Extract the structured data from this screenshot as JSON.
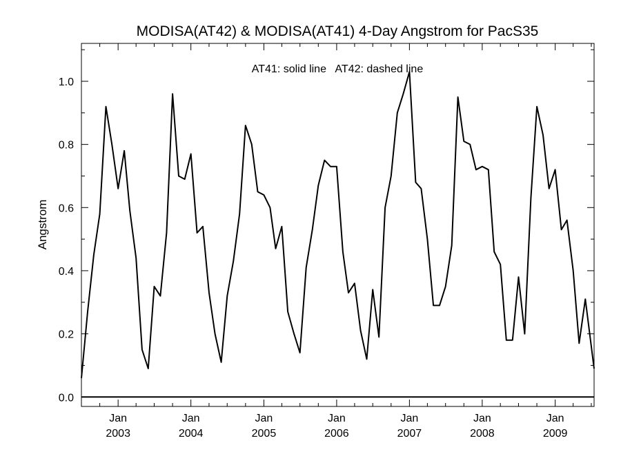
{
  "chart_data": {
    "type": "line",
    "title": "MODISA(AT42) & MODISA(AT41) 4-Day Angstrom for PacS35",
    "annotation": "AT41: solid line   AT42: dashed line",
    "ylabel": "Angstrom",
    "xlabel": "",
    "xlim": [
      "2002-07-01",
      "2009-07-15"
    ],
    "ylim": [
      -0.03,
      1.12
    ],
    "yticks": [
      0.0,
      0.2,
      0.4,
      0.6,
      0.8,
      1.0
    ],
    "ytick_labels": [
      "0.0",
      "0.2",
      "0.4",
      "0.6",
      "0.8",
      "1.0"
    ],
    "xticks": [
      {
        "date": "2003-01-01",
        "month": "Jan",
        "year": "2003"
      },
      {
        "date": "2004-01-01",
        "month": "Jan",
        "year": "2004"
      },
      {
        "date": "2005-01-01",
        "month": "Jan",
        "year": "2005"
      },
      {
        "date": "2006-01-01",
        "month": "Jan",
        "year": "2006"
      },
      {
        "date": "2007-01-01",
        "month": "Jan",
        "year": "2007"
      },
      {
        "date": "2008-01-01",
        "month": "Jan",
        "year": "2008"
      },
      {
        "date": "2009-01-01",
        "month": "Jan",
        "year": "2009"
      }
    ],
    "grid": false,
    "series": [
      {
        "style": "solid",
        "color": "#000000",
        "points": [
          [
            "2002-07-01",
            0.06
          ],
          [
            "2002-08-01",
            0.27
          ],
          [
            "2002-09-01",
            0.45
          ],
          [
            "2002-10-01",
            0.58
          ],
          [
            "2002-11-01",
            0.92
          ],
          [
            "2002-12-01",
            0.8
          ],
          [
            "2003-01-01",
            0.66
          ],
          [
            "2003-02-01",
            0.78
          ],
          [
            "2003-03-01",
            0.59
          ],
          [
            "2003-04-01",
            0.44
          ],
          [
            "2003-05-01",
            0.15
          ],
          [
            "2003-06-01",
            0.09
          ],
          [
            "2003-07-01",
            0.35
          ],
          [
            "2003-08-01",
            0.32
          ],
          [
            "2003-09-01",
            0.52
          ],
          [
            "2003-10-01",
            0.96
          ],
          [
            "2003-11-01",
            0.7
          ],
          [
            "2003-12-01",
            0.69
          ],
          [
            "2004-01-01",
            0.77
          ],
          [
            "2004-02-01",
            0.52
          ],
          [
            "2004-03-01",
            0.54
          ],
          [
            "2004-04-01",
            0.33
          ],
          [
            "2004-05-01",
            0.2
          ],
          [
            "2004-06-01",
            0.11
          ],
          [
            "2004-07-01",
            0.32
          ],
          [
            "2004-08-01",
            0.43
          ],
          [
            "2004-09-01",
            0.58
          ],
          [
            "2004-10-01",
            0.86
          ],
          [
            "2004-11-01",
            0.8
          ],
          [
            "2004-12-01",
            0.65
          ],
          [
            "2005-01-01",
            0.64
          ],
          [
            "2005-02-01",
            0.6
          ],
          [
            "2005-03-01",
            0.47
          ],
          [
            "2005-04-01",
            0.54
          ],
          [
            "2005-05-01",
            0.27
          ],
          [
            "2005-06-01",
            0.2
          ],
          [
            "2005-07-01",
            0.14
          ],
          [
            "2005-08-01",
            0.41
          ],
          [
            "2005-09-01",
            0.53
          ],
          [
            "2005-10-01",
            0.67
          ],
          [
            "2005-11-01",
            0.75
          ],
          [
            "2005-12-01",
            0.73
          ],
          [
            "2006-01-01",
            0.73
          ],
          [
            "2006-02-01",
            0.46
          ],
          [
            "2006-03-01",
            0.33
          ],
          [
            "2006-04-01",
            0.36
          ],
          [
            "2006-05-01",
            0.21
          ],
          [
            "2006-06-01",
            0.12
          ],
          [
            "2006-07-01",
            0.34
          ],
          [
            "2006-08-01",
            0.19
          ],
          [
            "2006-09-01",
            0.6
          ],
          [
            "2006-10-01",
            0.7
          ],
          [
            "2006-11-01",
            0.9
          ],
          [
            "2006-12-01",
            0.96
          ],
          [
            "2007-01-01",
            1.03
          ],
          [
            "2007-02-01",
            0.68
          ],
          [
            "2007-03-01",
            0.66
          ],
          [
            "2007-04-01",
            0.5
          ],
          [
            "2007-05-01",
            0.29
          ],
          [
            "2007-06-01",
            0.29
          ],
          [
            "2007-07-01",
            0.35
          ],
          [
            "2007-08-01",
            0.48
          ],
          [
            "2007-09-01",
            0.95
          ],
          [
            "2007-10-01",
            0.81
          ],
          [
            "2007-11-01",
            0.8
          ],
          [
            "2007-12-01",
            0.72
          ],
          [
            "2008-01-01",
            0.73
          ],
          [
            "2008-02-01",
            0.72
          ],
          [
            "2008-03-01",
            0.46
          ],
          [
            "2008-04-01",
            0.42
          ],
          [
            "2008-05-01",
            0.18
          ],
          [
            "2008-06-01",
            0.18
          ],
          [
            "2008-07-01",
            0.38
          ],
          [
            "2008-08-01",
            0.2
          ],
          [
            "2008-09-01",
            0.63
          ],
          [
            "2008-10-01",
            0.92
          ],
          [
            "2008-11-01",
            0.83
          ],
          [
            "2008-12-01",
            0.66
          ],
          [
            "2009-01-01",
            0.72
          ],
          [
            "2009-02-01",
            0.53
          ],
          [
            "2009-03-01",
            0.56
          ],
          [
            "2009-04-01",
            0.4
          ],
          [
            "2009-05-01",
            0.17
          ],
          [
            "2009-06-01",
            0.31
          ],
          [
            "2009-07-15",
            0.09
          ]
        ]
      }
    ],
    "reference_line": {
      "y": 0.0,
      "color": "#000000"
    }
  }
}
